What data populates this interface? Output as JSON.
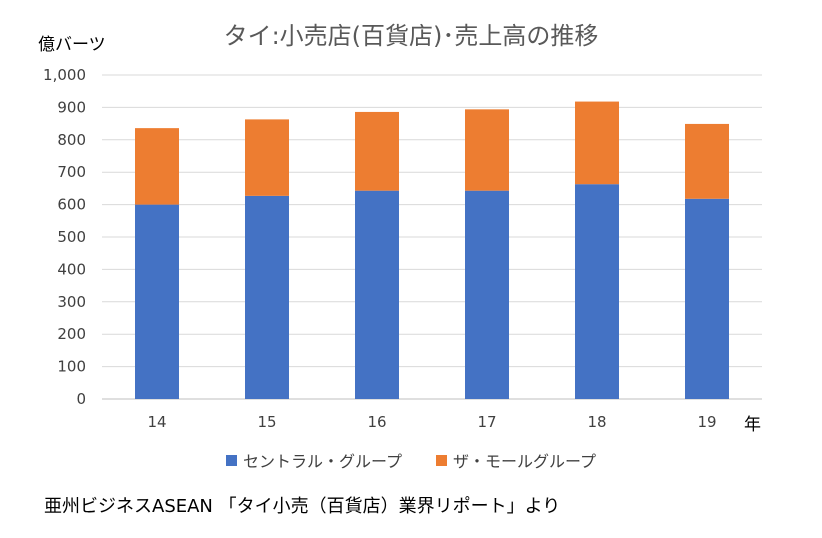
{
  "chart_data": {
    "type": "bar",
    "stacked": true,
    "title": "タイ:小売店(百貨店)･売上高の推移",
    "ylabel": "億バーツ",
    "xlabel": "年",
    "categories": [
      "14",
      "15",
      "16",
      "17",
      "18",
      "19"
    ],
    "series": [
      {
        "name": "セントラル・グループ",
        "color": "#4472C4",
        "values": [
          600,
          627,
          643,
          643,
          663,
          618
        ]
      },
      {
        "name": "ザ・モールグループ",
        "color": "#ED7D31",
        "values": [
          236,
          236,
          243,
          251,
          255,
          231
        ]
      }
    ],
    "ylim": [
      0,
      1000
    ],
    "yticks": [
      "0",
      "100",
      "200",
      "300",
      "400",
      "500",
      "600",
      "700",
      "800",
      "900",
      "1,000"
    ],
    "grid": true,
    "legend": "bottom"
  },
  "source": "亜州ビジネスASEAN 「タイ小売（百貨店）業界リポート」より"
}
